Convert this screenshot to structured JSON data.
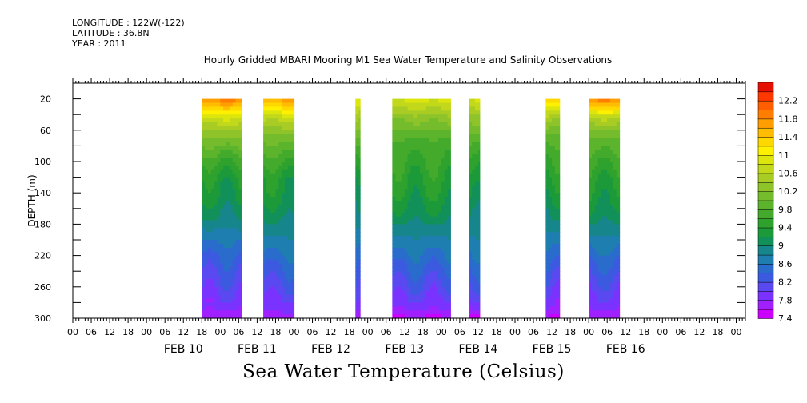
{
  "header": {
    "longitude": "LONGITUDE : 122W(-122)",
    "latitude": "LATITUDE : 36.8N",
    "year": "YEAR : 2011"
  },
  "chart_data": {
    "type": "heatmap",
    "title": "Hourly Gridded MBARI Mooring M1 Sea Water Temperature and Salinity Observations",
    "ylabel": "DEPTH (m)",
    "footer_label": "Sea Water Temperature (Celsius)",
    "xlim_hours": [
      -24,
      195
    ],
    "ylim": [
      300,
      0
    ],
    "y_ticks": [
      20,
      60,
      100,
      140,
      180,
      220,
      260,
      300
    ],
    "x_hour_tick_labels": [
      "00",
      "06",
      "12",
      "18"
    ],
    "day_labels": [
      "FEB 10",
      "FEB 11",
      "FEB 12",
      "FEB 13",
      "FEB 14",
      "FEB 15",
      "FEB 16"
    ],
    "colorbar": {
      "min": 7.4,
      "max": 12.4,
      "step": 0.2,
      "tick_labels": [
        "12.2",
        "11.8",
        "11.4",
        "11",
        "10.6",
        "10.2",
        "9.8",
        "9.4",
        "9",
        "8.6",
        "8.2",
        "7.8",
        "7.4"
      ],
      "colors": [
        "#cc00ff",
        "#a020ff",
        "#7a33ff",
        "#5a48f0",
        "#3c5ae0",
        "#2a6ccc",
        "#1e7eb0",
        "#16868c",
        "#12905a",
        "#1c9a3a",
        "#2fa22e",
        "#44aa2c",
        "#5cb42c",
        "#74bc2c",
        "#8ec42a",
        "#a8cc24",
        "#c2d81a",
        "#dde60c",
        "#fff000",
        "#ffd800",
        "#ffbc00",
        "#ff9e00",
        "#ff7e00",
        "#ff5e00",
        "#ff3800",
        "#e61000"
      ]
    },
    "segments": [
      {
        "start_hour": 18,
        "end_hour": 31,
        "profile": [
          11.9,
          10.8,
          10.2,
          9.7,
          9.35,
          9.2,
          9.0,
          8.7,
          8.4,
          8.2,
          8.0,
          7.8,
          7.6
        ]
      },
      {
        "start_hour": 38,
        "end_hour": 48,
        "profile": [
          11.7,
          10.7,
          10.1,
          9.7,
          9.35,
          9.25,
          9.05,
          8.8,
          8.55,
          8.3,
          8.05,
          7.85,
          7.65
        ]
      },
      {
        "start_hour": 68,
        "end_hour": 69.5,
        "profile": [
          11.0,
          10.4,
          10.0,
          9.6,
          9.3,
          9.15,
          9.0,
          8.7,
          8.4,
          8.2,
          8.0,
          7.8,
          7.6
        ]
      },
      {
        "start_hour": 80,
        "end_hour": 99,
        "profile": [
          10.9,
          10.3,
          9.8,
          9.6,
          9.45,
          9.3,
          9.1,
          8.8,
          8.55,
          8.3,
          8.05,
          7.8,
          7.55
        ]
      },
      {
        "start_hour": 105,
        "end_hour": 108.5,
        "profile": [
          10.8,
          10.3,
          9.9,
          9.6,
          9.4,
          9.2,
          9.0,
          8.8,
          8.55,
          8.3,
          8.05,
          7.75,
          7.45
        ]
      },
      {
        "start_hour": 130,
        "end_hour": 134.5,
        "profile": [
          11.4,
          10.5,
          9.9,
          9.6,
          9.4,
          9.2,
          9.0,
          8.75,
          8.5,
          8.25,
          8.0,
          7.75,
          7.55
        ]
      },
      {
        "start_hour": 144,
        "end_hour": 154,
        "profile": [
          11.9,
          10.6,
          10.0,
          9.7,
          9.45,
          9.3,
          9.1,
          8.8,
          8.5,
          8.25,
          8.0,
          7.8,
          7.6
        ]
      }
    ],
    "profile_depths": [
      20,
      45,
      70,
      95,
      120,
      145,
      170,
      195,
      220,
      245,
      270,
      290,
      300
    ]
  }
}
